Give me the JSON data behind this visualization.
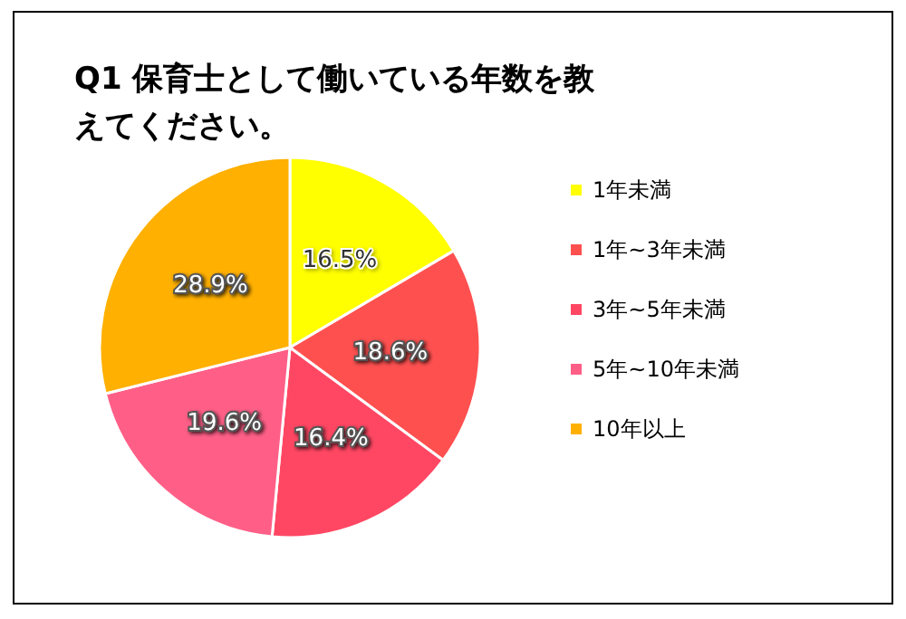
{
  "chart_data": {
    "type": "pie",
    "title": "Q1 保育士として働いている年数を教えてください。",
    "categories": [
      "1年未満",
      "1年~3年未満",
      "3年~5年未満",
      "5年~10年未満",
      "10年以上"
    ],
    "values": [
      16.5,
      18.6,
      16.4,
      19.6,
      28.9
    ],
    "colors": [
      "#ffff00",
      "#ff5050",
      "#ff4763",
      "#ff5f87",
      "#ffb000"
    ],
    "value_labels": [
      "16.5%",
      "18.6%",
      "16.4%",
      "19.6%",
      "28.9%"
    ],
    "legend": "right"
  }
}
